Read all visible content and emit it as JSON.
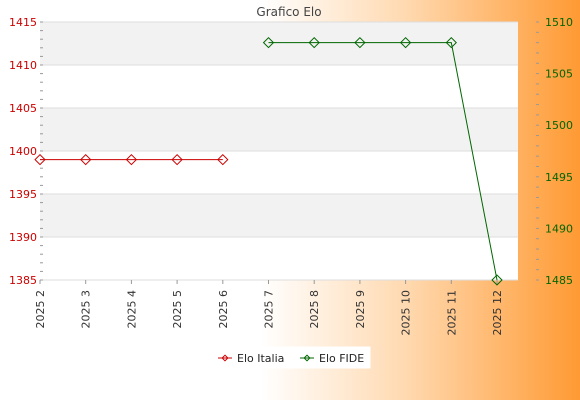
{
  "chart_data": {
    "type": "line",
    "title": "Grafico Elo",
    "categories": [
      "2025 2",
      "2025 3",
      "2025 4",
      "2025 5",
      "2025 6",
      "2025 7",
      "2025 8",
      "2025 9",
      "2025 10",
      "2025 11",
      "2025 12"
    ],
    "series": [
      {
        "name": "Elo Italia",
        "axis": "left",
        "color": "#cc0000",
        "values": [
          1399,
          1399,
          1399,
          1399,
          1399,
          null,
          null,
          null,
          null,
          null,
          null
        ]
      },
      {
        "name": "Elo FIDE",
        "axis": "right",
        "color": "#006600",
        "values": [
          null,
          null,
          null,
          null,
          null,
          1508,
          1508,
          1508,
          1508,
          1508,
          1485
        ]
      }
    ],
    "left_axis": {
      "min": 1385,
      "max": 1415,
      "ticks": [
        1385,
        1390,
        1395,
        1400,
        1405,
        1410,
        1415
      ],
      "color": "#cc0000"
    },
    "right_axis": {
      "min": 1485,
      "max": 1510,
      "ticks": [
        1485,
        1490,
        1495,
        1500,
        1505,
        1510
      ],
      "color": "#006600"
    },
    "grid": true,
    "legend_position": "bottom-center"
  }
}
